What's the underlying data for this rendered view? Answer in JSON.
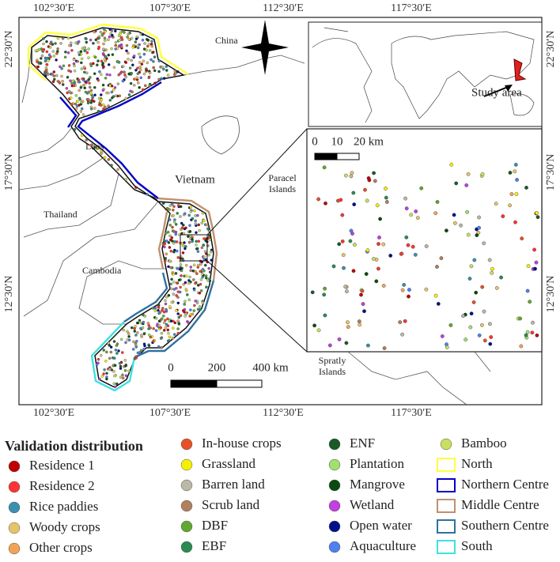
{
  "map": {
    "lon_labels_top": [
      "102°30′E",
      "107°30′E",
      "112°30′E",
      "117°30′E"
    ],
    "lon_labels_bottom": [
      "102°30′E",
      "107°30′E",
      "112°30′E",
      "117°30′E"
    ],
    "lat_labels_left": [
      "22°30′N",
      "17°30′N",
      "12°30′N"
    ],
    "lat_labels_right": [
      "22°30′N",
      "17°30′N",
      "12°30′N"
    ],
    "places": {
      "china": "China",
      "laos": "Laos",
      "thailand": "Thailand",
      "cambodia": "Cambodia",
      "vietnam": "Vietnam",
      "paracel": [
        "Paracel",
        "Islands"
      ],
      "spratly": [
        "Spratly",
        "Islands"
      ]
    },
    "scale_bar": [
      "0",
      "200",
      "400 km"
    ],
    "inset_scale_bar": [
      "0",
      "10",
      "20 km"
    ],
    "study_area": "Study area"
  },
  "legend": {
    "title": "Validation distribution",
    "items": [
      {
        "label": "Residence 1",
        "color": "#c00000",
        "style": "point"
      },
      {
        "label": "Residence 2",
        "color": "#ff3333",
        "style": "point"
      },
      {
        "label": "Rice paddies",
        "color": "#3d8fb0",
        "style": "point"
      },
      {
        "label": "Woody crops",
        "color": "#e8c468",
        "style": "point"
      },
      {
        "label": "Other crops",
        "color": "#f0a458",
        "style": "point"
      },
      {
        "label": "In-house crops",
        "color": "#e85028",
        "style": "point"
      },
      {
        "label": "Grassland",
        "color": "#f5f000",
        "style": "point"
      },
      {
        "label": "Barren land",
        "color": "#bcb8a8",
        "style": "point"
      },
      {
        "label": "Scrub land",
        "color": "#b08060",
        "style": "point"
      },
      {
        "label": "DBF",
        "color": "#60a830",
        "style": "point"
      },
      {
        "label": "EBF",
        "color": "#2a8a50",
        "style": "point"
      },
      {
        "label": "ENF",
        "color": "#1a5a28",
        "style": "point"
      },
      {
        "label": "Plantation",
        "color": "#a0e070",
        "style": "point"
      },
      {
        "label": "Mangrove",
        "color": "#0a4a10",
        "style": "point"
      },
      {
        "label": "Wetland",
        "color": "#c040e0",
        "style": "point"
      },
      {
        "label": "Open water",
        "color": "#00108a",
        "style": "point"
      },
      {
        "label": "Aquaculture",
        "color": "#5080f0",
        "style": "point"
      },
      {
        "label": "Bamboo",
        "color": "#c8e060",
        "style": "point"
      },
      {
        "label": "North",
        "color": "#ffff40",
        "style": "outline"
      },
      {
        "label": "Northern Centre",
        "color": "#0000c8",
        "style": "outline"
      },
      {
        "label": "Middle Centre",
        "color": "#c09070",
        "style": "outline"
      },
      {
        "label": "Southern Centre",
        "color": "#3070a0",
        "style": "outline"
      },
      {
        "label": "South",
        "color": "#40e0e0",
        "style": "outline"
      }
    ]
  }
}
